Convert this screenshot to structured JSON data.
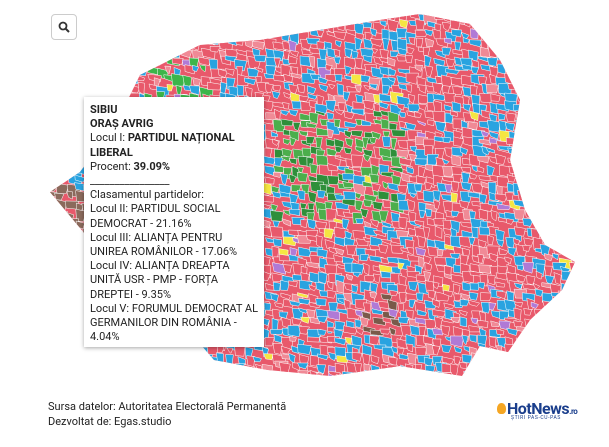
{
  "tooltip": {
    "county": "SIBIU",
    "locality": "ORAȘ AVRIG",
    "winner_label": "Locul I: ",
    "winner": "PARTIDUL NAȚIONAL LIBERAL",
    "percent_label": "Procent: ",
    "percent": "39.09%",
    "separator": "________________",
    "ranking_title": "Clasamentul partidelor:",
    "ranking": [
      "Locul II: PARTIDUL SOCIAL DEMOCRAT - 21.16%",
      "Locul III: ALIANȚA PENTRU UNIREA ROMÂNILOR - 17.06%",
      "Locul IV: ALIANȚA DREAPTA UNITĂ USR - PMP - FORȚA DREPTEI - 9.35%",
      "Locul V: FORUMUL DEMOCRAT AL GERMANILOR DIN ROMÂNIA - 4.04%"
    ]
  },
  "footer": {
    "source": "Sursa datelor: Autoritatea Electorală Permanentă",
    "developer": "Dezvoltat de: Egas.studio"
  },
  "logo": {
    "name": "HotNews",
    "domain": ".ro",
    "tagline": "ȘTIRI PAS-CU-PAS"
  }
}
